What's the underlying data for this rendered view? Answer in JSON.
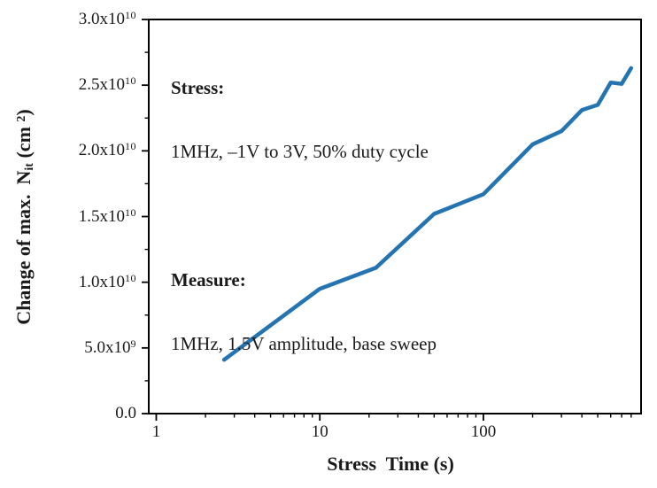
{
  "figure": {
    "background": "#ffffff",
    "frame_color": "#000000",
    "text_color": "#1a1a1a",
    "annotation": {
      "stress_heading": "Stress:",
      "stress_body": "1MHz, –1V to 3V, 50% duty cycle",
      "measure_heading": "Measure:",
      "measure_body": "1MHz, 1.5V amplitude, base sweep"
    }
  },
  "chart_data": {
    "type": "line",
    "title": "",
    "xlabel": "Stress  Time (s)",
    "ylabel": "Change of max.  N_it (cm 2)",
    "ylabel_parts": {
      "prefix": "Change of max.  N",
      "sub": "it",
      "mid": " (cm ",
      "sup": "2",
      "suffix": ")"
    },
    "x_scale": "log",
    "y_scale": "linear",
    "xlim": [
      0.9,
      920
    ],
    "ylim": [
      0,
      30000000000.0
    ],
    "grid": false,
    "legend": "none",
    "x_major_ticks": [
      1,
      10,
      100
    ],
    "x_tick_labels": [
      "1",
      "10",
      "100"
    ],
    "x_minor_ticks": [
      2,
      3,
      4,
      5,
      6,
      7,
      8,
      9,
      20,
      30,
      40,
      50,
      60,
      70,
      80,
      90,
      200,
      300,
      400,
      500,
      600,
      700,
      800
    ],
    "y_major_ticks": [
      0,
      5000000000.0,
      10000000000.0,
      15000000000.0,
      20000000000.0,
      25000000000.0,
      30000000000.0
    ],
    "y_tick_labels": [
      {
        "base": "0.0",
        "exp": ""
      },
      {
        "base": "5.0x10",
        "exp": "9"
      },
      {
        "base": "1.0x10",
        "exp": "10"
      },
      {
        "base": "1.5x10",
        "exp": "10"
      },
      {
        "base": "2.0x10",
        "exp": "10"
      },
      {
        "base": "2.5x10",
        "exp": "10"
      },
      {
        "base": "3.0x10",
        "exp": "10"
      }
    ],
    "y_minor_ticks": [
      2500000000.0,
      7500000000.0,
      12500000000.0,
      17500000000.0,
      22500000000.0,
      27500000000.0
    ],
    "series": [
      {
        "name": "Change of max. Nit",
        "color": "#2474b2",
        "line_width": 4.5,
        "x": [
          2.6,
          10,
          22,
          50,
          100,
          200,
          300,
          400,
          500,
          600,
          700,
          800
        ],
        "y": [
          4100000000.0,
          9500000000.0,
          11100000000.0,
          15200000000.0,
          16700000000.0,
          20500000000.0,
          21500000000.0,
          23100000000.0,
          23500000000.0,
          25200000000.0,
          25100000000.0,
          26300000000.0
        ]
      }
    ]
  }
}
